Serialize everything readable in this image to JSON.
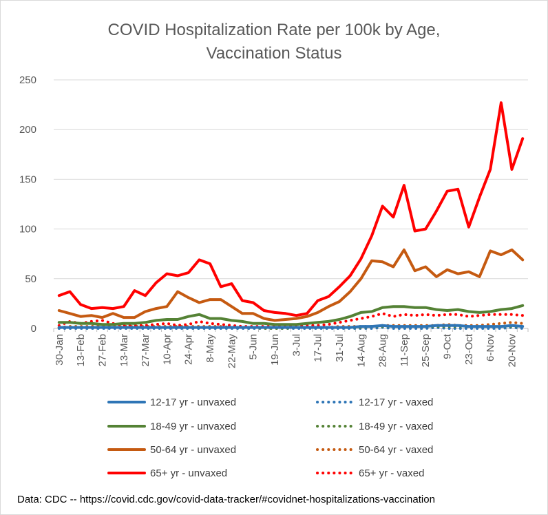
{
  "chart_data": {
    "type": "line",
    "title_lines": [
      "COVID Hospitalization Rate per 100k by Age,",
      "Vaccination Status"
    ],
    "ylim": [
      0,
      250
    ],
    "yticks": [
      0,
      50,
      100,
      150,
      200,
      250
    ],
    "grid": "horizontal",
    "legend_position": "bottom",
    "x": [
      "30-Jan",
      "6-Feb",
      "13-Feb",
      "20-Feb",
      "27-Feb",
      "6-Mar",
      "13-Mar",
      "20-Mar",
      "27-Mar",
      "3-Apr",
      "10-Apr",
      "17-Apr",
      "24-Apr",
      "1-May",
      "8-May",
      "15-May",
      "22-May",
      "29-May",
      "5-Jun",
      "12-Jun",
      "19-Jun",
      "26-Jun",
      "3-Jul",
      "10-Jul",
      "17-Jul",
      "24-Jul",
      "31-Jul",
      "7-Aug",
      "14-Aug",
      "21-Aug",
      "28-Aug",
      "4-Sep",
      "11-Sep",
      "18-Sep",
      "25-Sep",
      "2-Oct",
      "9-Oct",
      "16-Oct",
      "23-Oct",
      "30-Oct",
      "6-Nov",
      "13-Nov",
      "20-Nov",
      "27-Nov"
    ],
    "x_tick_labels": [
      "30-Jan",
      "13-Feb",
      "27-Feb",
      "13-Mar",
      "27-Mar",
      "10-Apr",
      "24-Apr",
      "8-May",
      "22-May",
      "5-Jun",
      "19-Jun",
      "3-Jul",
      "17-Jul",
      "31-Jul",
      "14-Aug",
      "28-Aug",
      "11-Sep",
      "25-Sep",
      "9-Oct",
      "23-Oct",
      "6-Nov",
      "20-Nov"
    ],
    "series": [
      {
        "name": "12-17 yr - unvaxed",
        "color": "#2e75b6",
        "style": "solid",
        "values": [
          1,
          1,
          1,
          1,
          1,
          1,
          1,
          1,
          1,
          1,
          1,
          1,
          1,
          1,
          1,
          1,
          1,
          1,
          1,
          1,
          1,
          1,
          1,
          1,
          1,
          1,
          1,
          1,
          2,
          2,
          3,
          2,
          2,
          2,
          2,
          3,
          3,
          3,
          2,
          2,
          2,
          2,
          3,
          2
        ]
      },
      {
        "name": "12-17 yr - vaxed",
        "color": "#2e75b6",
        "style": "dotted",
        "values": [
          0,
          0,
          0,
          0,
          0,
          0,
          0,
          0,
          0,
          0,
          0,
          0,
          0,
          0,
          0,
          0,
          0,
          0,
          0,
          0,
          0,
          0,
          0,
          0,
          0,
          0,
          0,
          0,
          0,
          0,
          1,
          0,
          0,
          0,
          0,
          1,
          0,
          0,
          0,
          0,
          0,
          0,
          1,
          0
        ]
      },
      {
        "name": "18-49 yr - unvaxed",
        "color": "#548235",
        "style": "solid",
        "values": [
          6,
          6,
          5,
          5,
          4,
          4,
          5,
          5,
          6,
          8,
          9,
          9,
          12,
          14,
          10,
          10,
          8,
          7,
          5,
          5,
          4,
          4,
          4,
          5,
          6,
          7,
          9,
          12,
          16,
          17,
          21,
          22,
          22,
          21,
          21,
          19,
          18,
          19,
          17,
          16,
          17,
          19,
          20,
          23
        ]
      },
      {
        "name": "18-49 yr - vaxed",
        "color": "#548235",
        "style": "dotted",
        "values": [
          1,
          1,
          1,
          1,
          1,
          1,
          1,
          1,
          1,
          1,
          1,
          1,
          1,
          1,
          1,
          1,
          1,
          1,
          1,
          0,
          0,
          0,
          1,
          1,
          1,
          1,
          1,
          1,
          1,
          2,
          2,
          2,
          2,
          2,
          2,
          2,
          2,
          2,
          2,
          2,
          2,
          2,
          2,
          2
        ]
      },
      {
        "name": "50-64 yr - unvaxed",
        "color": "#c55a11",
        "style": "solid",
        "values": [
          18,
          15,
          12,
          13,
          11,
          15,
          11,
          11,
          17,
          20,
          22,
          37,
          31,
          26,
          29,
          29,
          22,
          15,
          15,
          10,
          8,
          9,
          10,
          12,
          16,
          22,
          27,
          37,
          50,
          68,
          67,
          62,
          79,
          58,
          62,
          52,
          59,
          55,
          57,
          52,
          78,
          74,
          79,
          69
        ]
      },
      {
        "name": "50-64 yr - vaxed",
        "color": "#c55a11",
        "style": "dotted",
        "values": [
          1,
          2,
          2,
          2,
          3,
          2,
          2,
          2,
          2,
          2,
          2,
          2,
          2,
          2,
          2,
          2,
          1,
          1,
          1,
          1,
          1,
          1,
          1,
          1,
          1,
          1,
          2,
          2,
          2,
          2,
          3,
          3,
          3,
          3,
          3,
          3,
          4,
          3,
          3,
          3,
          4,
          5,
          6,
          5
        ]
      },
      {
        "name": "65+ yr - unvaxed",
        "color": "#ff0000",
        "style": "solid",
        "values": [
          33,
          37,
          24,
          20,
          21,
          20,
          22,
          38,
          33,
          46,
          55,
          53,
          56,
          69,
          65,
          42,
          45,
          28,
          26,
          18,
          16,
          15,
          13,
          15,
          28,
          32,
          42,
          53,
          70,
          93,
          123,
          112,
          144,
          98,
          100,
          118,
          138,
          140,
          102,
          132,
          160,
          227,
          160,
          191
        ]
      },
      {
        "name": "65+ yr - vaxed",
        "color": "#ff0000",
        "style": "dotted",
        "values": [
          3,
          7,
          5,
          7,
          8,
          5,
          3,
          3,
          3,
          4,
          5,
          3,
          4,
          7,
          5,
          4,
          3,
          2,
          2,
          2,
          2,
          2,
          2,
          3,
          3,
          4,
          6,
          8,
          10,
          12,
          15,
          12,
          14,
          13,
          14,
          13,
          14,
          14,
          12,
          13,
          14,
          14,
          14,
          13
        ]
      }
    ],
    "source_note": "Data: CDC -- https://covid.cdc.gov/covid-data-tracker/#covidnet-hospitalizations-vaccination"
  }
}
